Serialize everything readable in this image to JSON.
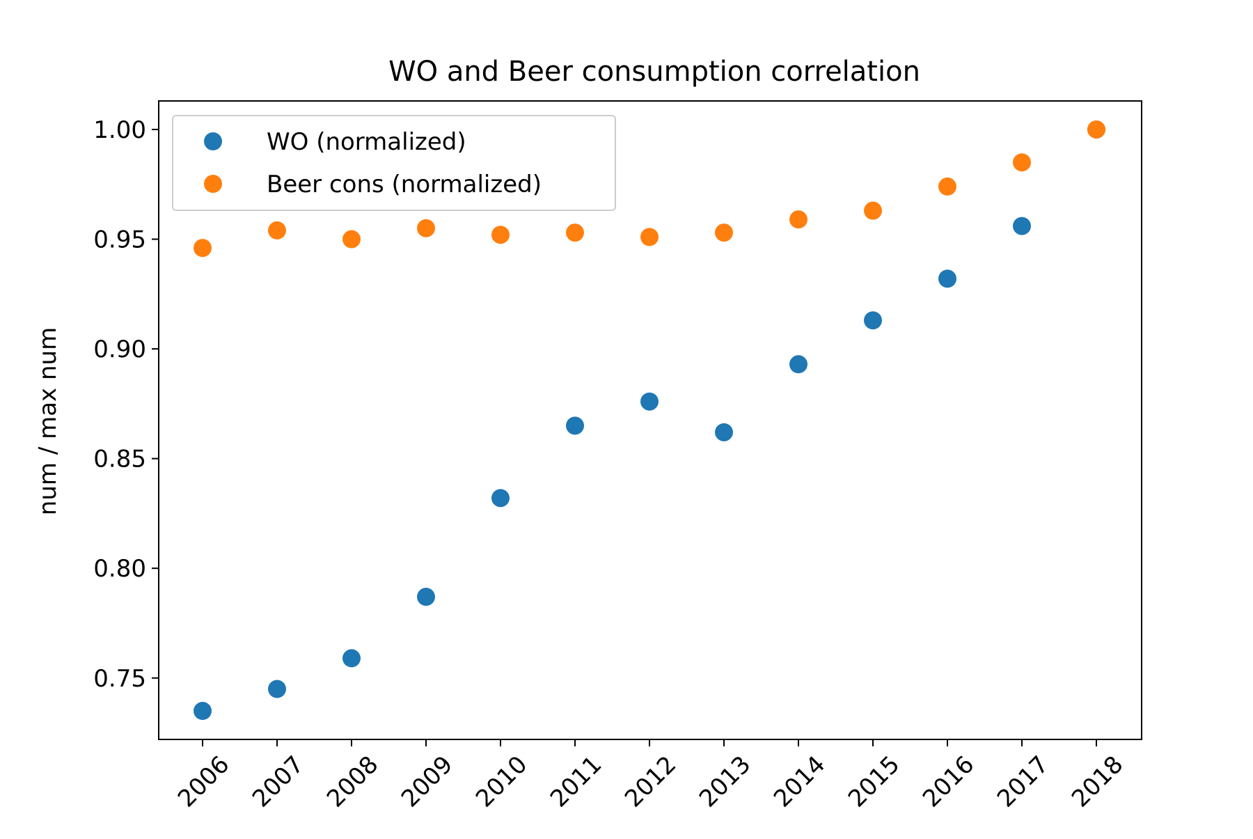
{
  "chart_data": {
    "type": "scatter",
    "title": "WO and Beer consumption correlation",
    "xlabel": "",
    "ylabel": "num / max num",
    "x": [
      "2006",
      "2007",
      "2008",
      "2009",
      "2010",
      "2011",
      "2012",
      "2013",
      "2014",
      "2015",
      "2016",
      "2017",
      "2018"
    ],
    "ylim": [
      0.722,
      1.013
    ],
    "yticks": [
      0.75,
      0.8,
      0.85,
      0.9,
      0.95,
      1.0
    ],
    "ytick_labels": [
      "0.75",
      "0.80",
      "0.85",
      "0.90",
      "0.95",
      "1.00"
    ],
    "xtick_rotation": 45,
    "grid": false,
    "legend_position": "top-left",
    "series": [
      {
        "name": "WO (normalized)",
        "color": "#1f77b4",
        "values": [
          0.735,
          0.745,
          0.759,
          0.787,
          0.832,
          0.865,
          0.876,
          0.862,
          0.893,
          0.913,
          0.932,
          0.956,
          1.0
        ]
      },
      {
        "name": "Beer cons (normalized)",
        "color": "#ff7f0e",
        "values": [
          0.946,
          0.954,
          0.95,
          0.955,
          0.952,
          0.953,
          0.951,
          0.953,
          0.959,
          0.963,
          0.974,
          0.985,
          1.0
        ]
      }
    ]
  }
}
